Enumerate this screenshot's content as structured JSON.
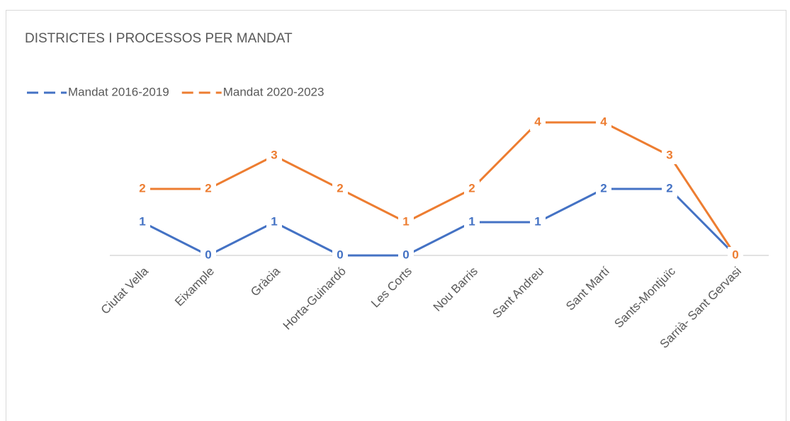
{
  "chart_data": {
    "type": "line",
    "title": "DISTRICTES I PROCESSOS PER MANDAT",
    "categories": [
      "Ciutat Vella",
      "Eixample",
      "Gràcia",
      "Horta-Guinardó",
      "Les Corts",
      "Nou Barris",
      "Sant Andreu",
      "Sant Martí",
      "Sants-Montjuïc",
      "Sarrià- Sant Gervasi"
    ],
    "series": [
      {
        "name": "Mandat 2016-2019",
        "color": "#4472c4",
        "values": [
          1,
          0,
          1,
          0,
          0,
          1,
          1,
          2,
          2,
          0
        ]
      },
      {
        "name": "Mandat 2020-2023",
        "color": "#ed7d31",
        "values": [
          2,
          2,
          3,
          2,
          1,
          2,
          4,
          4,
          3,
          0
        ]
      }
    ],
    "legend": "top-left",
    "data_labels": true
  }
}
